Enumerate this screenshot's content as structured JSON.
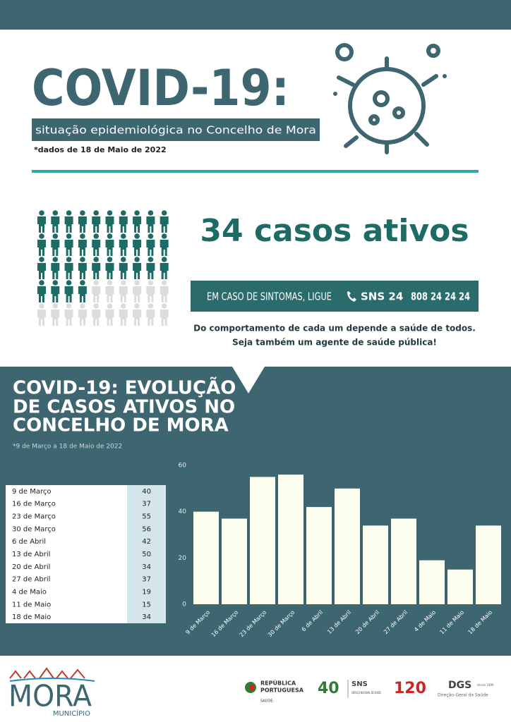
{
  "header": {
    "title": "COVID-19:",
    "subtitle": "situação epidemiológica no Concelho de Mora",
    "date_note": "*dados de 18 de Maio de 2022"
  },
  "active_cases": {
    "count": 34,
    "label": "casos ativos"
  },
  "hotline": {
    "text": "EM CASO DE SINTOMAS, LIGUE",
    "service": "SNS 24",
    "number": "808 24 24 24"
  },
  "message": [
    "Do comportamento de cada um depende a saúde de todos.",
    "Seja também um agente de saúde pública!"
  ],
  "chart_data": {
    "type": "bar",
    "title": [
      "COVID-19: EVOLUÇÃO",
      "DE CASOS ATIVOS NO",
      "CONCELHO DE MORA"
    ],
    "subtitle": "*9 de Março a 18 de Maio de 2022",
    "categories": [
      "9 de Março",
      "16 de Março",
      "23 de Março",
      "30 de Março",
      "6 de Abril",
      "13 de Abril",
      "20 de Abril",
      "27 de Abril",
      "4 de Maio",
      "11 de Maio",
      "18 de Maio"
    ],
    "values": [
      40,
      37,
      55,
      56,
      42,
      50,
      34,
      37,
      19,
      15,
      34
    ],
    "color": "#fdfdee",
    "ylim": [
      0,
      60
    ],
    "yticks": [
      0,
      20,
      40,
      60
    ],
    "grid": false
  },
  "footer": {
    "municipality": "MORA",
    "municipality_sub": "MUNICÍPIO",
    "gov": [
      "REPÚBLICA",
      "PORTUGUESA"
    ],
    "gov_sub": "SAÚDE",
    "sns_years": "40",
    "sns": "SNS",
    "sns_sub": "SERVIÇO NACIONAL DE SAÚDE",
    "dgs_years": "120",
    "dgs": "DGS",
    "dgs_sub": "Direção-Geral da Saúde",
    "dgs_since": "desde 1899"
  }
}
